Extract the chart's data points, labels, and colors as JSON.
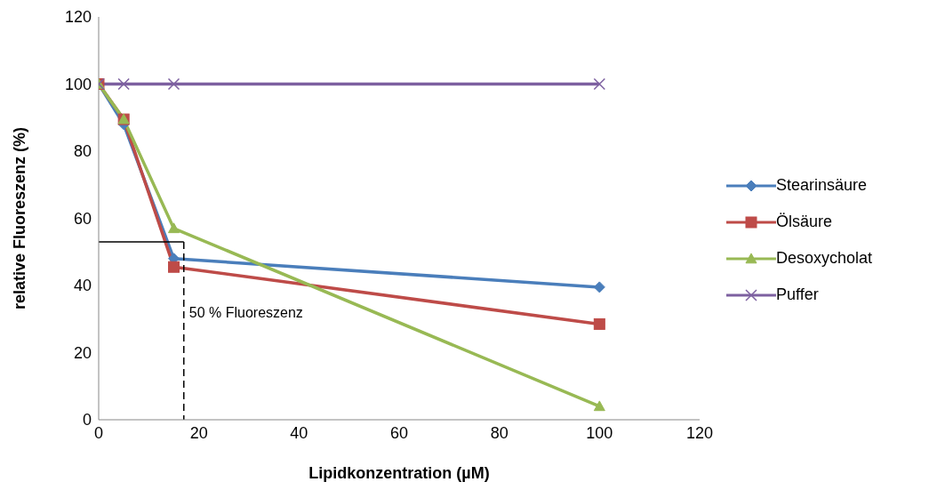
{
  "chart_data": {
    "type": "line",
    "xlabel": "Lipidkonzentration (µM)",
    "ylabel": "relative Fluoreszenz (%)",
    "x": [
      0,
      5,
      15,
      100
    ],
    "series": [
      {
        "name": "Stearinsäure",
        "color": "#4a7ebb",
        "marker": "diamond",
        "values": [
          100,
          88,
          48,
          39.5
        ]
      },
      {
        "name": "Ölsäure",
        "color": "#be4b48",
        "marker": "square",
        "values": [
          100,
          89.5,
          45.5,
          28.5
        ]
      },
      {
        "name": "Desoxycholat",
        "color": "#98b954",
        "marker": "triangle",
        "values": [
          100,
          89.5,
          57,
          4
        ]
      },
      {
        "name": "Puffer",
        "color": "#7d60a0",
        "marker": "cross",
        "values": [
          100,
          100,
          100,
          100
        ]
      }
    ],
    "xlim": [
      0,
      120
    ],
    "xticks": [
      0,
      20,
      40,
      60,
      80,
      100,
      120
    ],
    "ylim": [
      0,
      120
    ],
    "yticks": [
      0,
      20,
      40,
      60,
      80,
      100,
      120
    ],
    "grid": false,
    "legend": "right",
    "ref_lines": [
      {
        "axis": "y",
        "value": 53,
        "line_style": "solid",
        "color": "#000000"
      },
      {
        "axis": "x",
        "value": 17,
        "label": "50 % Fluoreszenz",
        "line_style": "dashed",
        "color": "#000000"
      }
    ]
  }
}
